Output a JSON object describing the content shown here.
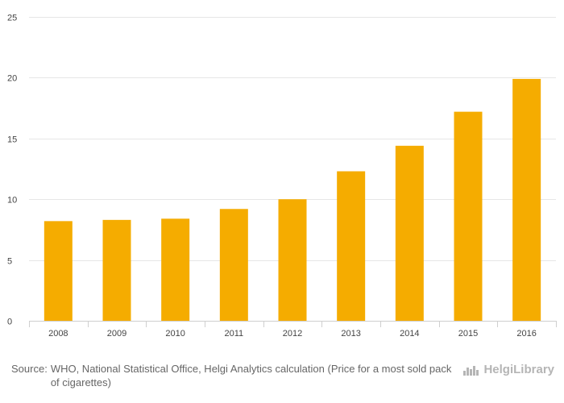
{
  "chart_data": {
    "type": "bar",
    "categories": [
      "2008",
      "2009",
      "2010",
      "2011",
      "2012",
      "2013",
      "2014",
      "2015",
      "2016"
    ],
    "values": [
      8.2,
      8.3,
      8.4,
      9.2,
      10.0,
      12.3,
      14.4,
      17.2,
      19.9
    ],
    "ylim": [
      0,
      25
    ],
    "yticks": [
      0,
      5,
      10,
      15,
      20,
      25
    ],
    "bar_color": "#f5ac00",
    "grid": true,
    "title": "",
    "xlabel": "",
    "ylabel": ""
  },
  "footer": {
    "source_prefix": "Source:",
    "source_text": "WHO, National Statistical Office, Helgi Analytics calculation (Price for a most sold pack of cigarettes)"
  },
  "logo": {
    "text": "HelgiLibrary",
    "color": "#b5b5b5",
    "icon": "helgi-logo-icon"
  }
}
